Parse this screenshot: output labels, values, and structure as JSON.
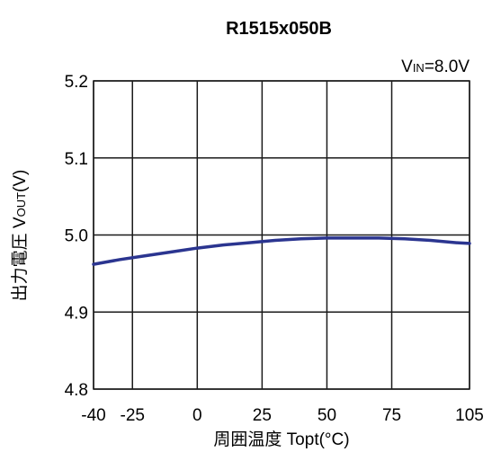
{
  "chart_data": {
    "type": "line",
    "title": "R1515x050B",
    "condition": {
      "prefix": "V",
      "subscript": "IN",
      "suffix": "=8.0V"
    },
    "xlabel": "周囲温度 Topt(°C)",
    "ylabel": {
      "prefix": "出力電圧 V",
      "subscript": "OUT",
      "suffix": "(V)"
    },
    "xlim": [
      -40,
      105
    ],
    "ylim": [
      4.8,
      5.2
    ],
    "xticks": [
      -40,
      -25,
      0,
      25,
      50,
      75,
      105
    ],
    "xtick_labels": [
      "-40",
      "-25",
      "0",
      "25",
      "50",
      "75",
      "105"
    ],
    "yticks": [
      4.8,
      4.9,
      5.0,
      5.1,
      5.2
    ],
    "ytick_labels": [
      "4.8",
      "4.9",
      "5.0",
      "5.1",
      "5.2"
    ],
    "grid": true,
    "line_color": "#2b3590",
    "series": [
      {
        "x": [
          -40,
          -30,
          -20,
          -10,
          0,
          10,
          20,
          30,
          40,
          50,
          60,
          70,
          80,
          90,
          100,
          105
        ],
        "values": [
          4.962,
          4.968,
          4.973,
          4.978,
          4.983,
          4.987,
          4.99,
          4.993,
          4.995,
          4.996,
          4.996,
          4.996,
          4.995,
          4.993,
          4.99,
          4.989
        ]
      }
    ]
  }
}
